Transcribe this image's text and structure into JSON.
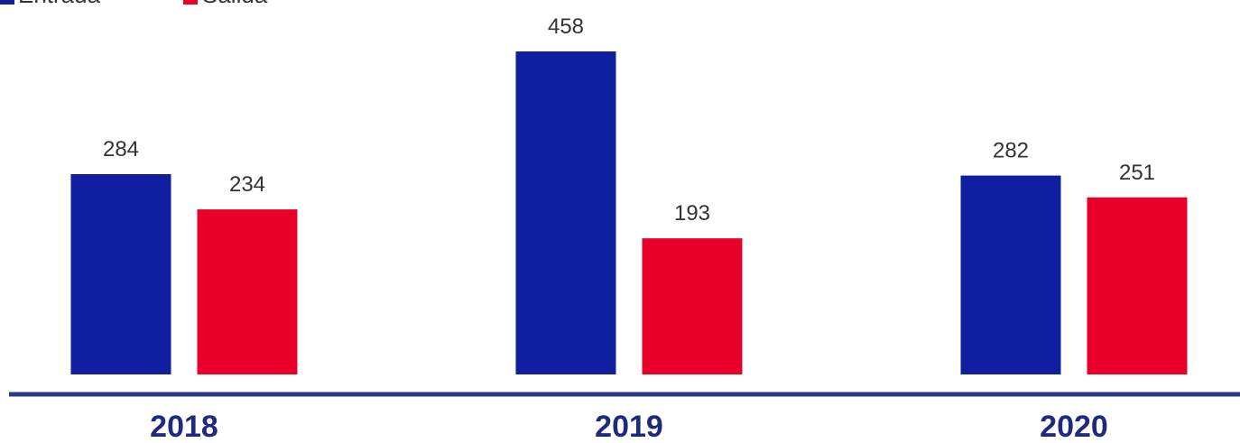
{
  "chart_data": {
    "type": "bar",
    "categories": [
      "2018",
      "2019",
      "2020"
    ],
    "series": [
      {
        "name": "Entrada",
        "values": [
          284,
          458,
          282
        ],
        "color": "#101ea0"
      },
      {
        "name": "Salida",
        "values": [
          234,
          193,
          251
        ],
        "color": "#e8002a"
      }
    ],
    "title": "",
    "xlabel": "",
    "ylabel": "",
    "ylim": [
      0,
      458
    ],
    "grid": false,
    "legend": "top-left",
    "baseline_color": "#2b3a7a",
    "tick_label_color": "#1f2a7a"
  }
}
